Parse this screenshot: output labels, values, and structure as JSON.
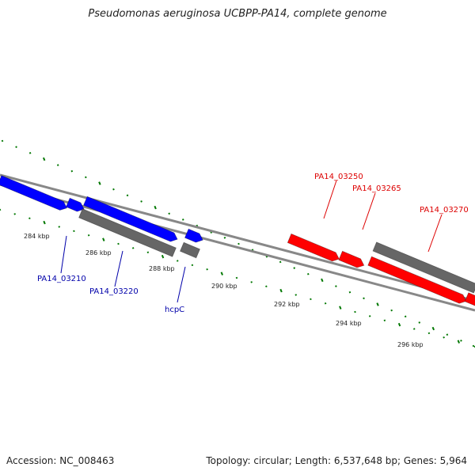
{
  "title": "Pseudomonas aeruginosa UCBPP-PA14, complete genome",
  "footer": {
    "accession": "Accession: NC_008463",
    "summary": "Topology: circular; Length: 6,537,648 bp; Genes: 5,964"
  },
  "colors": {
    "forward_gene": "#0000ff",
    "reverse_gene": "#ff0000",
    "other_gene": "#666666",
    "tick": "#007700",
    "backbone": "#888888",
    "label_forward": "#0000aa",
    "label_reverse": "#dd0000"
  },
  "ruler": {
    "unit": "kbp",
    "labels": [
      {
        "text": "284 kbp",
        "kbp": 284
      },
      {
        "text": "286 kbp",
        "kbp": 286
      },
      {
        "text": "288 kbp",
        "kbp": 288
      },
      {
        "text": "290 kbp",
        "kbp": 290
      },
      {
        "text": "292 kbp",
        "kbp": 292
      },
      {
        "text": "294 kbp",
        "kbp": 294
      },
      {
        "text": "296 kbp",
        "kbp": 296
      }
    ]
  },
  "gene_labels": [
    {
      "text": "PA14_03210",
      "strand": "forward"
    },
    {
      "text": "PA14_03220",
      "strand": "forward"
    },
    {
      "text": "hcpC",
      "strand": "forward"
    },
    {
      "text": "PA14_03250",
      "strand": "reverse"
    },
    {
      "text": "PA14_03265",
      "strand": "reverse"
    },
    {
      "text": "PA14_03270",
      "strand": "reverse"
    }
  ]
}
